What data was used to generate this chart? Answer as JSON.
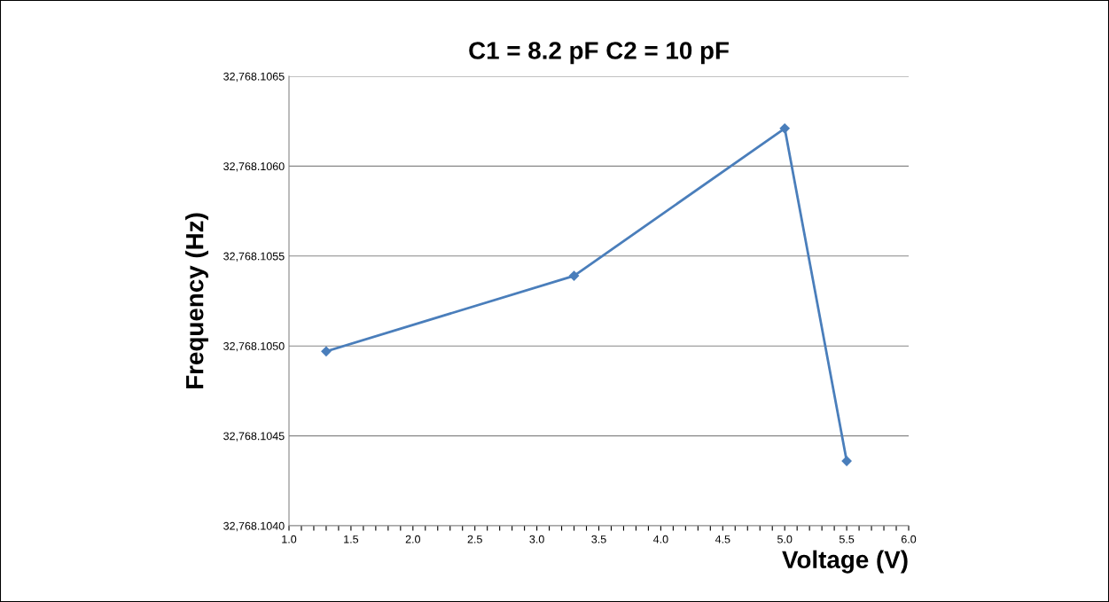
{
  "chart_data": {
    "type": "line",
    "title": "C1 = 8.2 pF C2 = 10 pF",
    "xlabel": "Voltage (V)",
    "ylabel": "Frequency (Hz)",
    "x": [
      1.3,
      3.3,
      5.0,
      5.5
    ],
    "series": [
      {
        "color": "#4a7ebb",
        "values": [
          32768.10497,
          32768.10539,
          32768.10621,
          32768.10436
        ]
      }
    ],
    "marker": "diamond",
    "line_style": "solid",
    "grid": "y",
    "legend": false,
    "xlim": [
      1.0,
      6.0
    ],
    "xticks": [
      {
        "value": 1,
        "label": "1.0"
      },
      {
        "value": 1.1,
        "label": null
      },
      {
        "value": 1.2,
        "label": null
      },
      {
        "value": 1.3,
        "label": null
      },
      {
        "value": 1.4,
        "label": null
      },
      1.5,
      {
        "value": 1.6,
        "label": null
      },
      {
        "value": 1.7,
        "label": null
      },
      {
        "value": 1.8,
        "label": null
      },
      {
        "value": 1.9,
        "label": null
      },
      {
        "value": 2,
        "label": "2.0"
      },
      {
        "value": 2.1,
        "label": null
      },
      {
        "value": 2.2,
        "label": null
      },
      {
        "value": 2.3,
        "label": null
      },
      {
        "value": 2.4,
        "label": null
      },
      2.5,
      {
        "value": 2.6,
        "label": null
      },
      {
        "value": 2.7,
        "label": null
      },
      {
        "value": 2.8,
        "label": null
      },
      {
        "value": 2.9,
        "label": null
      },
      {
        "value": 3,
        "label": "3.0"
      },
      {
        "value": 3.1,
        "label": null
      },
      {
        "value": 3.2,
        "label": null
      },
      {
        "value": 3.3,
        "label": null
      },
      {
        "value": 3.4,
        "label": null
      },
      3.5,
      {
        "value": 3.6,
        "label": null
      },
      {
        "value": 3.7,
        "label": null
      },
      {
        "value": 3.8,
        "label": null
      },
      {
        "value": 3.9,
        "label": null
      },
      {
        "value": 4,
        "label": "4.0"
      },
      {
        "value": 4.1,
        "label": null
      },
      {
        "value": 4.2,
        "label": null
      },
      {
        "value": 4.3,
        "label": null
      },
      {
        "value": 4.4,
        "label": null
      },
      4.5,
      {
        "value": 4.6,
        "label": null
      },
      {
        "value": 4.7,
        "label": null
      },
      {
        "value": 4.8,
        "label": null
      },
      {
        "value": 4.9,
        "label": null
      },
      {
        "value": 5,
        "label": "5.0"
      },
      {
        "value": 5.1,
        "label": null
      },
      {
        "value": 5.2,
        "label": null
      },
      {
        "value": 5.3,
        "label": null
      },
      {
        "value": 5.4,
        "label": null
      },
      5.5,
      {
        "value": 5.6,
        "label": null
      },
      {
        "value": 5.7,
        "label": null
      },
      {
        "value": 5.8,
        "label": null
      },
      {
        "value": 5.9,
        "label": null
      },
      {
        "value": 6,
        "label": "6.0"
      }
    ],
    "ylim": [
      32768.104,
      32768.1065
    ],
    "yticks": [
      {
        "value": 32768.104,
        "label": "32,768.1040"
      },
      {
        "value": 32768.1045,
        "label": "32,768.1045"
      },
      {
        "value": 32768.105,
        "label": "32,768.1050"
      },
      {
        "value": 32768.1055,
        "label": "32,768.1055"
      },
      {
        "value": 32768.106,
        "label": "32,768.1060"
      },
      {
        "value": 32768.1065,
        "label": "32,768.1065"
      }
    ]
  }
}
